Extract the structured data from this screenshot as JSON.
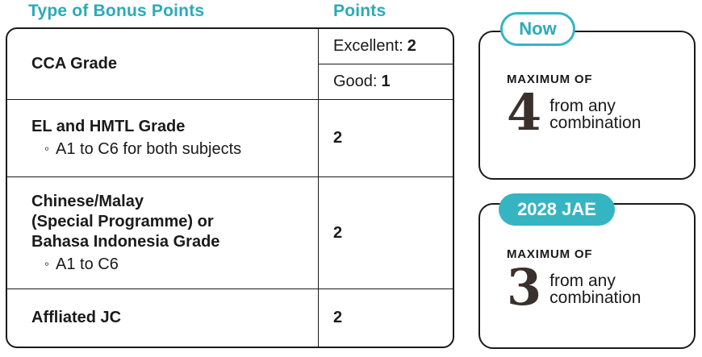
{
  "colors": {
    "teal_text": "#2baab8",
    "teal_fill": "#35b5c1",
    "ink": "#1a1a1a",
    "digit": "#3a302c"
  },
  "headers": {
    "type": "Type of Bonus Points",
    "points": "Points"
  },
  "bullet_glyph": "◦",
  "table": {
    "rows": [
      {
        "title": "CCA Grade",
        "points": [
          {
            "label": "Excellent:",
            "value": "2"
          },
          {
            "label": "Good:",
            "value": "1"
          }
        ]
      },
      {
        "title": "EL and HMTL Grade",
        "bullet": "A1 to C6 for both subjects",
        "points": "2"
      },
      {
        "title_line1": "Chinese/Malay",
        "title_line2": "(Special Programme) or",
        "title_line3": "Bahasa Indonesia Grade",
        "bullet": "A1 to C6",
        "points": "2"
      },
      {
        "title": "Affliated JC",
        "points": "2"
      }
    ]
  },
  "cards": [
    {
      "badge": "Now",
      "kicker": "MAXIMUM OF",
      "number": "4",
      "caption_line1": "from any",
      "caption_line2": "combination"
    },
    {
      "badge": "2028 JAE",
      "kicker": "MAXIMUM OF",
      "number": "3",
      "caption_line1": "from any",
      "caption_line2": "combination"
    }
  ]
}
